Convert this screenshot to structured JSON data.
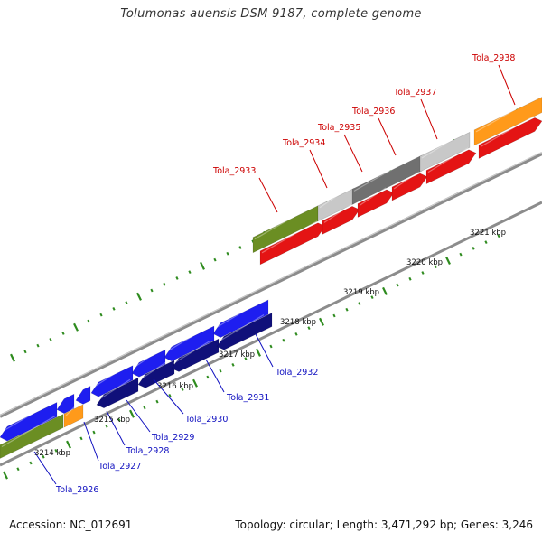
{
  "title": "Tolumonas auensis DSM 9187, complete genome",
  "footer": {
    "accession": "Accession: NC_012691",
    "stats": "Topology: circular; Length: 3,471,292 bp; Genes: 3,246"
  },
  "colors": {
    "forward_cds": "#e41414",
    "reverse_cds": "#1e1ef0",
    "reverse_cds_dark": "#10107a",
    "rna": "#6b8e23",
    "pseudo_light": "#c8c8c8",
    "pseudo_dark": "#707070",
    "other": "#ff9a1a",
    "forward_label": "#cc0000",
    "reverse_label": "#1010c0",
    "backbone": "#8c8c8c",
    "tick": "#2e8b1e"
  },
  "scale_labels": [
    "3214 kbp",
    "3215 kbp",
    "3216 kbp",
    "3217 kbp",
    "3218 kbp",
    "3219 kbp",
    "3220 kbp",
    "3221 kbp"
  ],
  "forward_genes": [
    {
      "label": "Tola_2933"
    },
    {
      "label": "Tola_2934"
    },
    {
      "label": "Tola_2935"
    },
    {
      "label": "Tola_2936"
    },
    {
      "label": "Tola_2937"
    },
    {
      "label": "Tola_2938"
    }
  ],
  "reverse_genes": [
    {
      "label": "Tola_2926"
    },
    {
      "label": "Tola_2927"
    },
    {
      "label": "Tola_2928"
    },
    {
      "label": "Tola_2929"
    },
    {
      "label": "Tola_2930"
    },
    {
      "label": "Tola_2931"
    },
    {
      "label": "Tola_2932"
    }
  ]
}
